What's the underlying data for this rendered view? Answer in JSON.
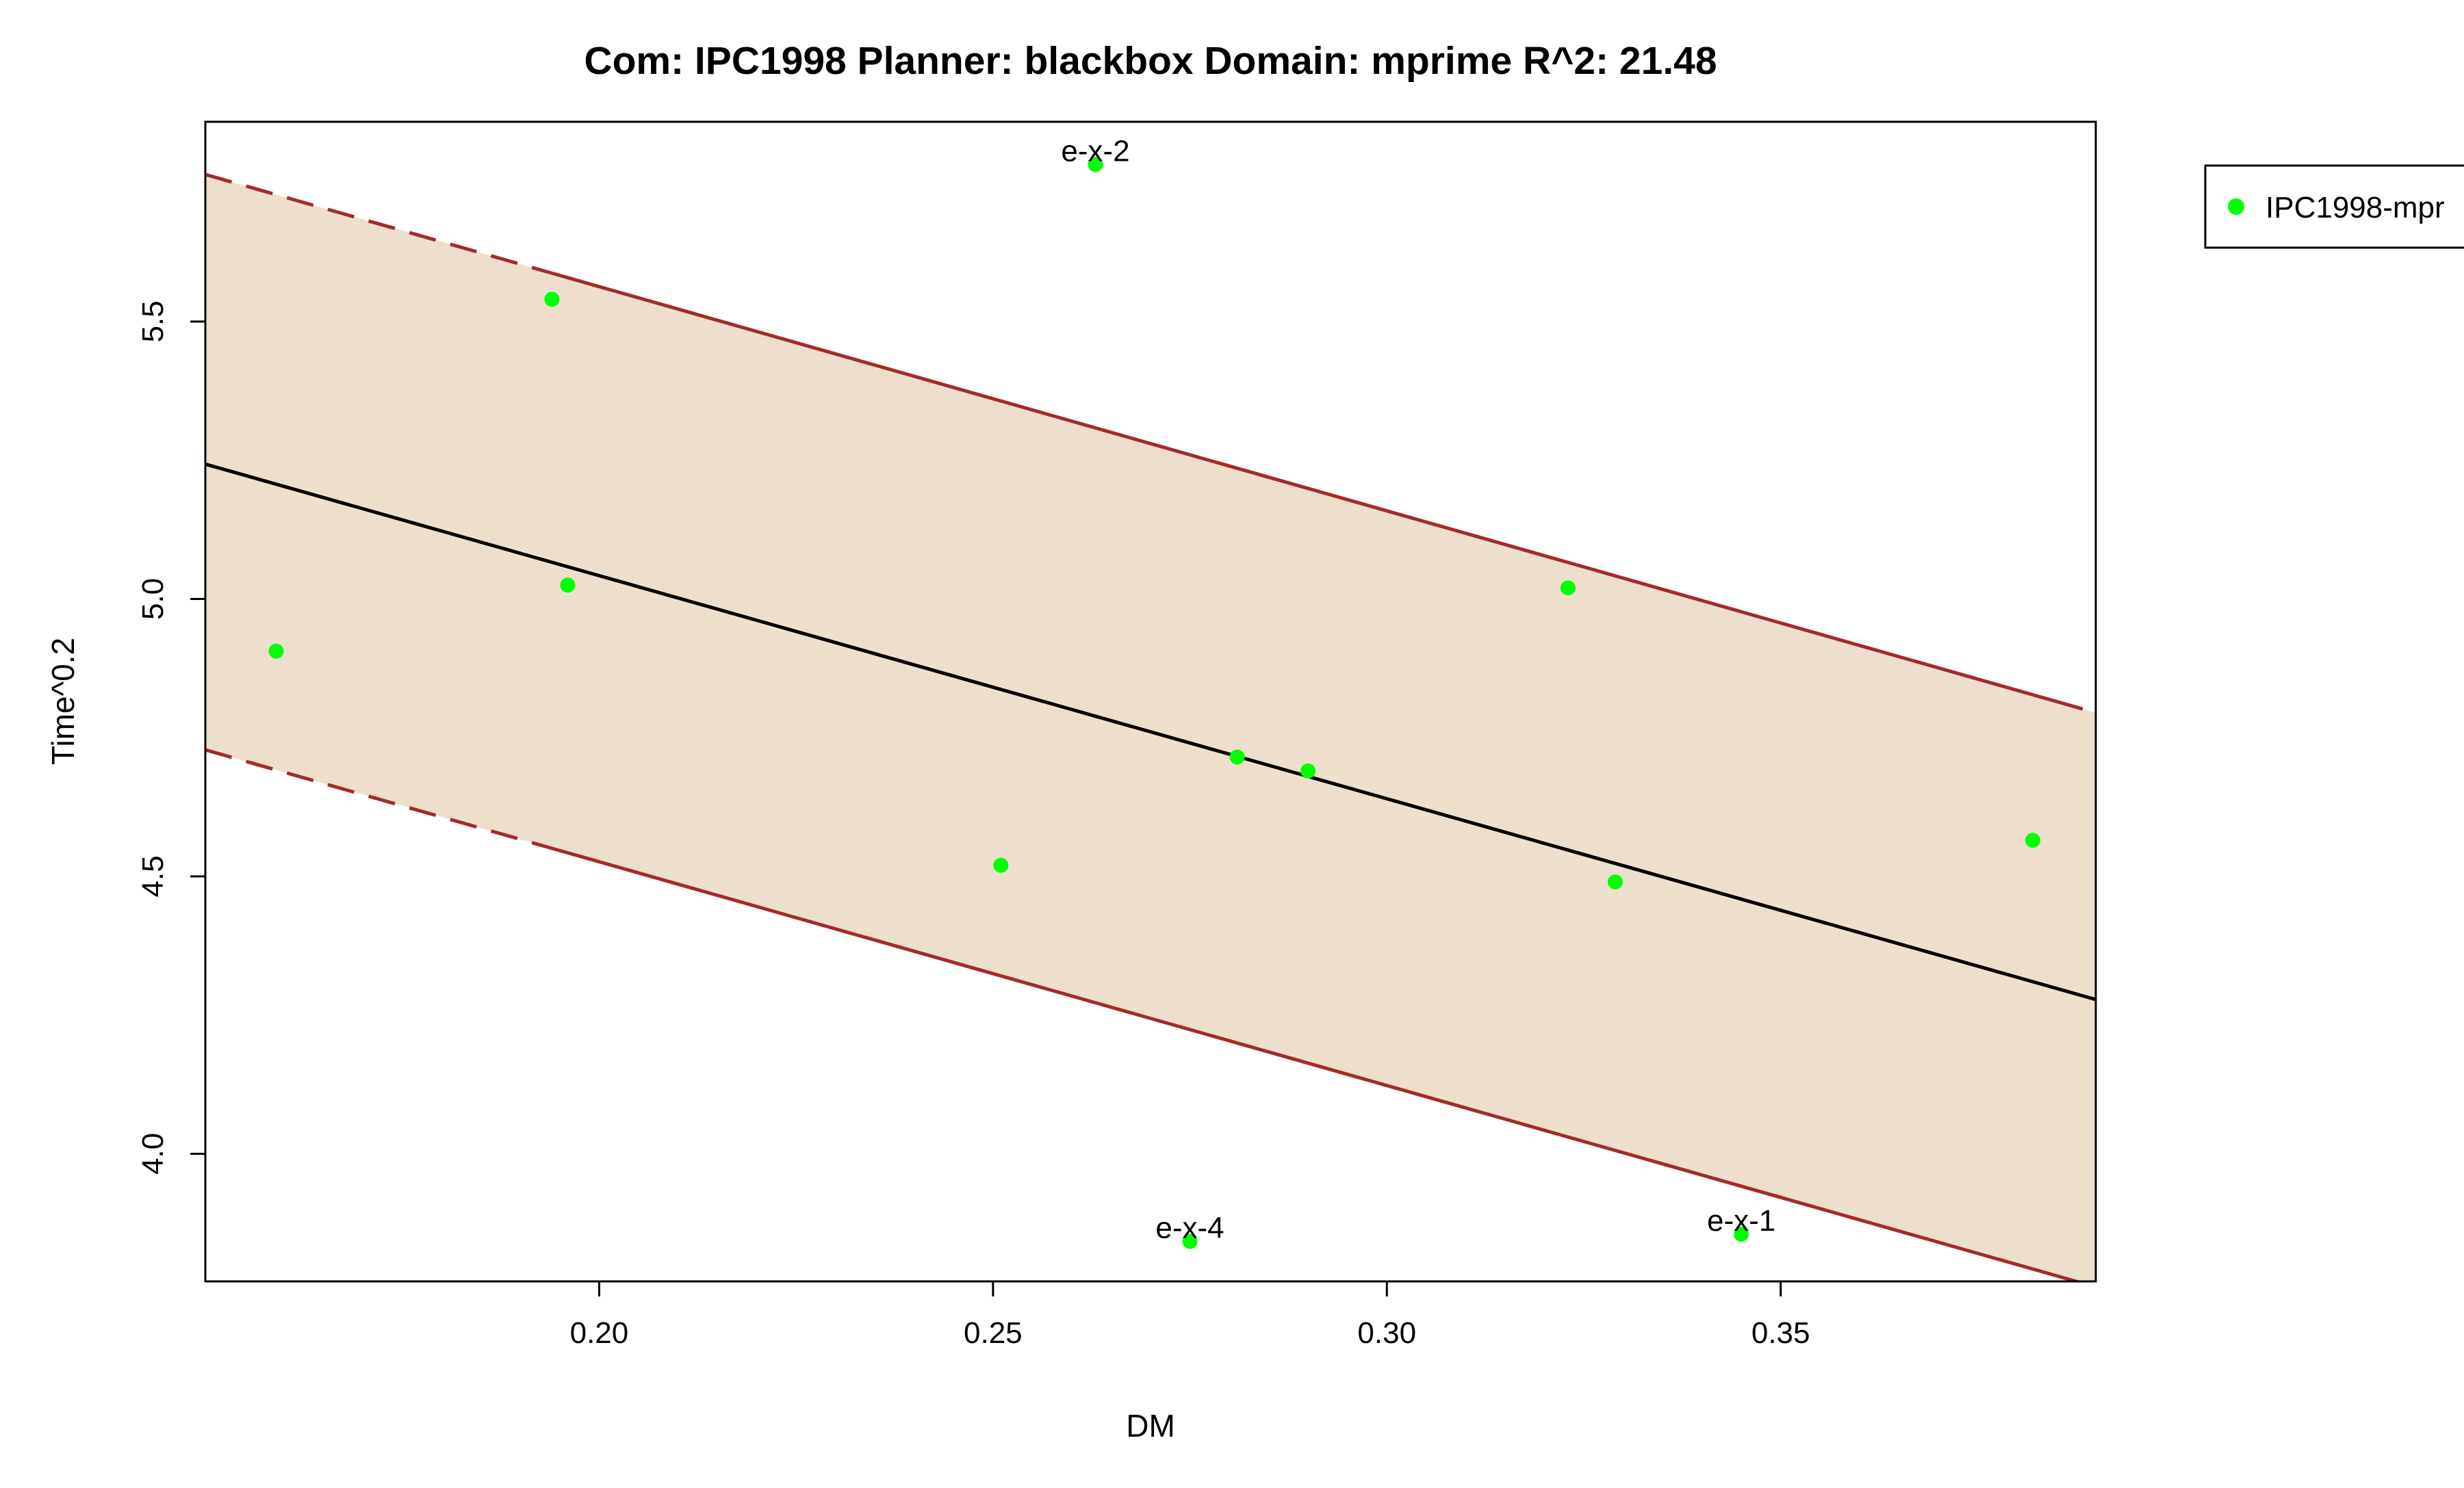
{
  "chart_data": {
    "type": "scatter",
    "title": "Com: IPC1998 Planner: blackbox Domain: mprime R^2: 21.48",
    "xlabel": "DM",
    "ylabel": "Time^0.2",
    "xlim": [
      0.15,
      0.39
    ],
    "ylim": [
      3.77,
      5.86
    ],
    "x_ticks": [
      0.2,
      0.25,
      0.3,
      0.35
    ],
    "x_tick_labels": [
      "0.20",
      "0.25",
      "0.30",
      "0.35"
    ],
    "y_ticks": [
      4.0,
      4.5,
      5.0,
      5.5
    ],
    "y_tick_labels": [
      "4.0",
      "4.5",
      "5.0",
      "5.5"
    ],
    "grid": false,
    "legend": {
      "placement": "top-right, outside plot area",
      "entries": [
        "IPC1998-mpr"
      ]
    },
    "series": [
      {
        "name": "IPC1998-mpr",
        "color": "#00ff00",
        "points": [
          {
            "x": 0.159,
            "y": 4.906,
            "label": ""
          },
          {
            "x": 0.194,
            "y": 5.54,
            "label": ""
          },
          {
            "x": 0.196,
            "y": 5.025,
            "label": ""
          },
          {
            "x": 0.251,
            "y": 4.52,
            "label": ""
          },
          {
            "x": 0.263,
            "y": 5.783,
            "label": "e-x-2"
          },
          {
            "x": 0.275,
            "y": 3.842,
            "label": "e-x-4"
          },
          {
            "x": 0.281,
            "y": 4.715,
            "label": ""
          },
          {
            "x": 0.29,
            "y": 4.69,
            "label": ""
          },
          {
            "x": 0.323,
            "y": 5.02,
            "label": ""
          },
          {
            "x": 0.329,
            "y": 4.49,
            "label": ""
          },
          {
            "x": 0.345,
            "y": 3.855,
            "label": "e-x-1"
          },
          {
            "x": 0.382,
            "y": 4.565,
            "label": ""
          }
        ]
      }
    ],
    "fit_line": {
      "color": "#000000",
      "x": [
        0.15,
        0.39
      ],
      "y": [
        5.243,
        4.278
      ]
    },
    "prediction_band": {
      "fill_color": "#eedfcc",
      "line_color": "#a52a2a",
      "upper": {
        "x": [
          0.15,
          0.39
        ],
        "y": [
          5.765,
          4.795
        ]
      },
      "lower": {
        "x": [
          0.15,
          0.39
        ],
        "y": [
          4.728,
          3.76
        ]
      },
      "dashed_segments": "ends outside inner range"
    }
  }
}
